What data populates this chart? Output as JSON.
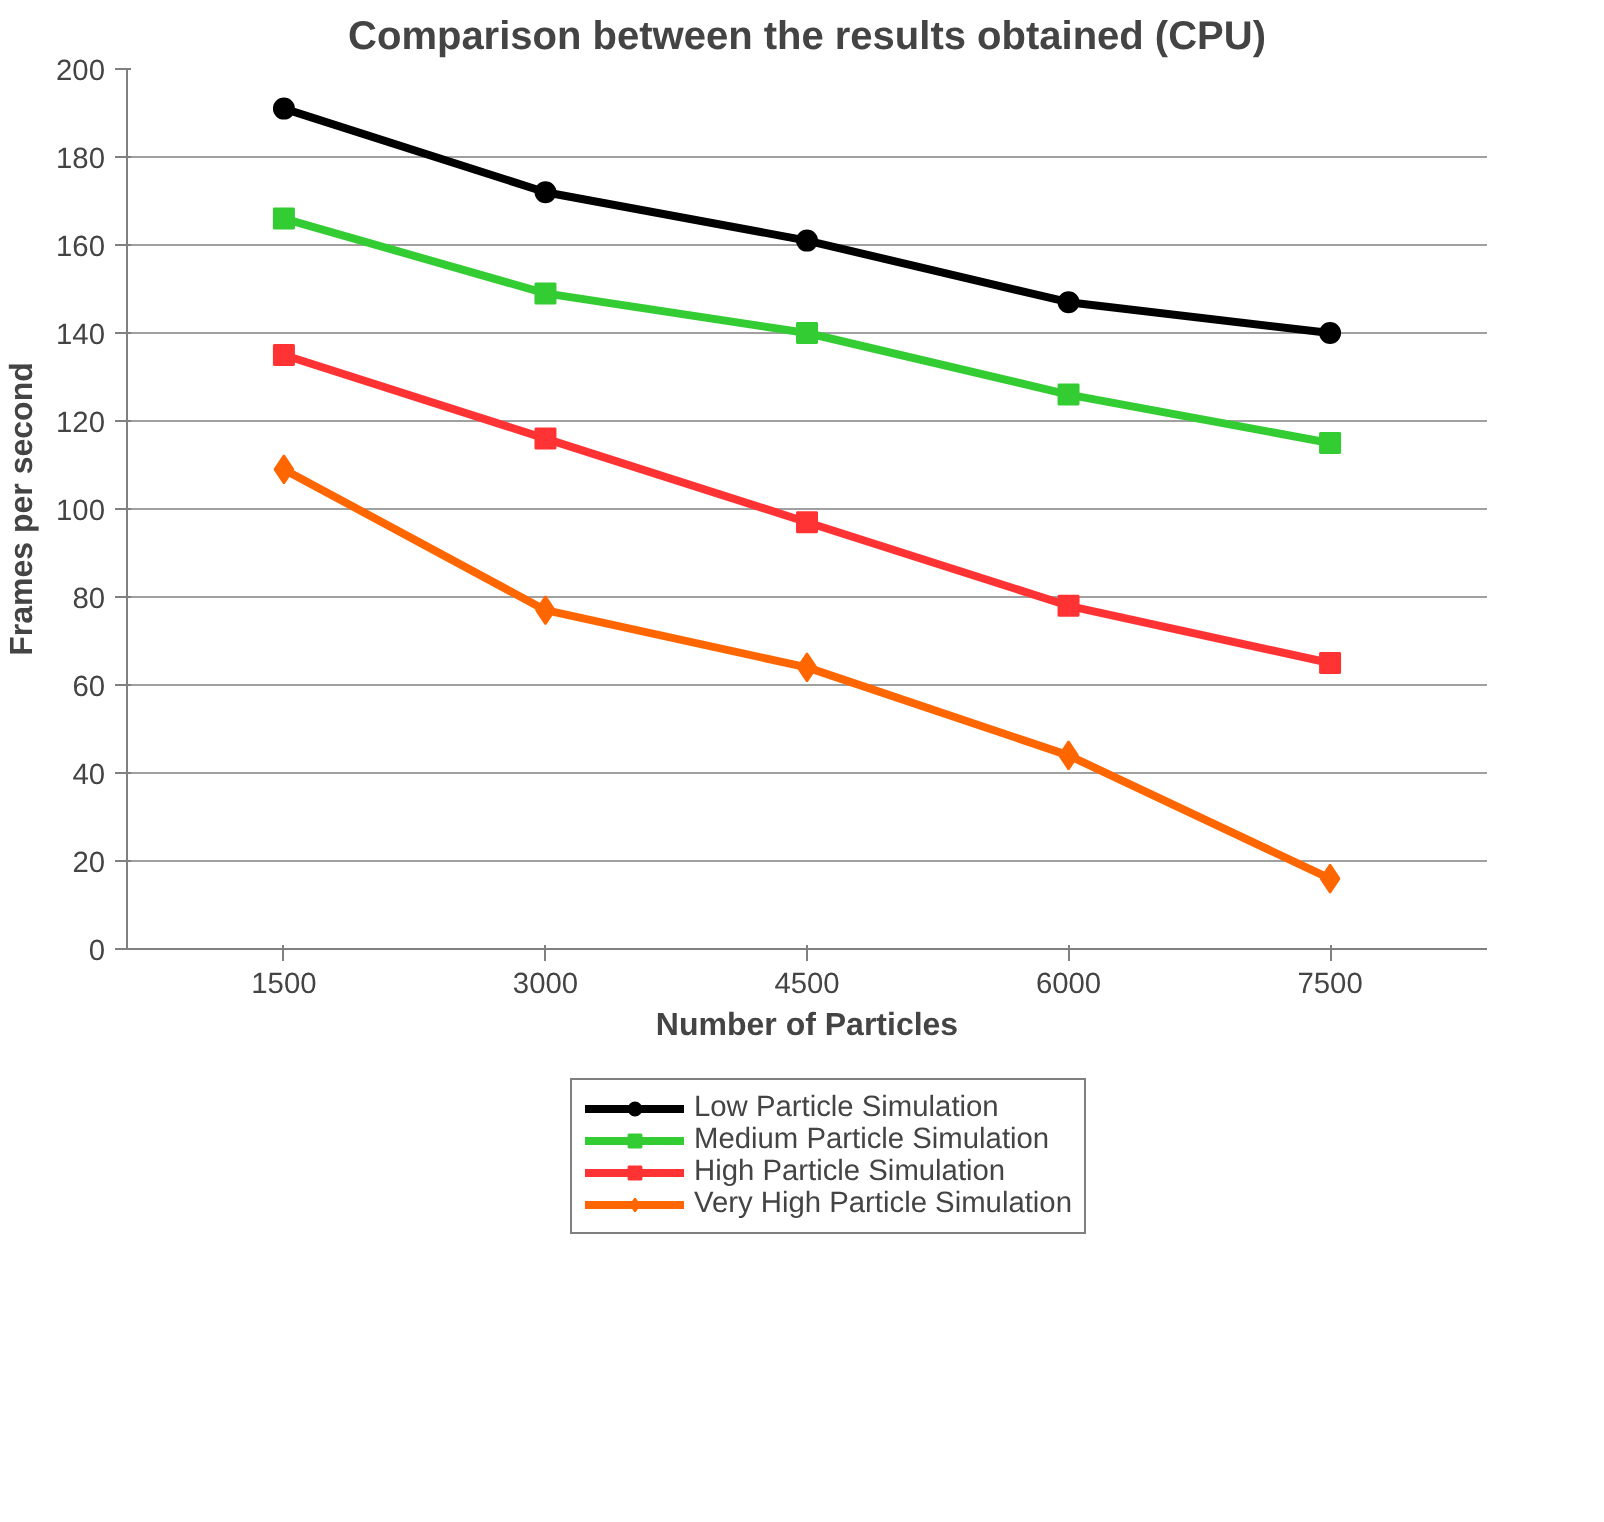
{
  "chart_data": {
    "type": "line",
    "title": "Comparison between the results obtained (CPU)",
    "xlabel": "Number of Particles",
    "ylabel": "Frames per second",
    "categories": [
      "1500",
      "3000",
      "4500",
      "6000",
      "7500"
    ],
    "series": [
      {
        "name": "Low Particle Simulation",
        "color": "#000000",
        "marker": "circle",
        "values": [
          191,
          172,
          161,
          147,
          140
        ]
      },
      {
        "name": "Medium Particle Simulation",
        "color": "#33cc33",
        "marker": "square",
        "values": [
          166,
          149,
          140,
          126,
          115
        ]
      },
      {
        "name": "High Particle Simulation",
        "color": "#ff3333",
        "marker": "square",
        "values": [
          135,
          116,
          97,
          78,
          65
        ]
      },
      {
        "name": "Very High Particle Simulation",
        "color": "#ff6600",
        "marker": "diamond",
        "values": [
          109,
          77,
          64,
          44,
          16
        ]
      }
    ],
    "ylim": [
      0,
      200
    ],
    "yticks": [
      0,
      20,
      40,
      60,
      80,
      100,
      120,
      140,
      160,
      180,
      200
    ],
    "grid": "y",
    "legend": "bottom",
    "line_style": "solid"
  }
}
